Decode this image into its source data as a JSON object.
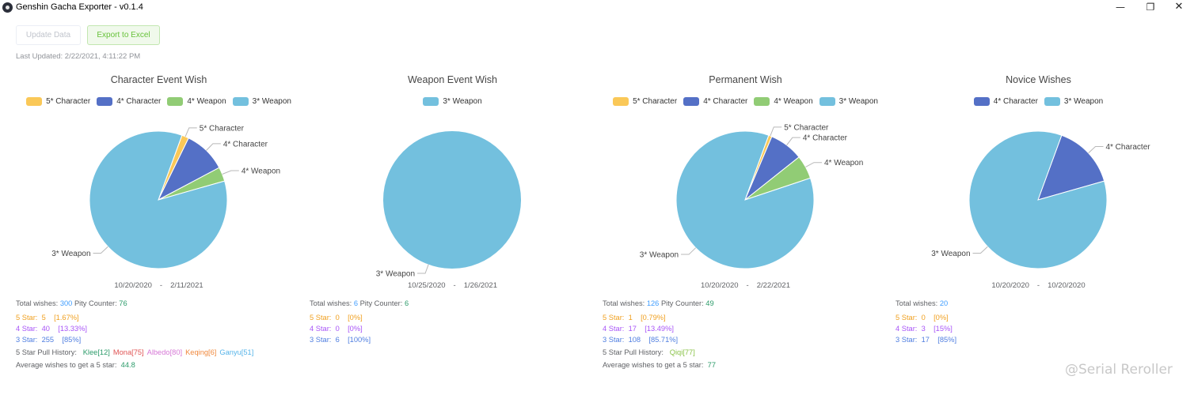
{
  "window": {
    "title": "Genshin Gacha Exporter - v0.1.4",
    "minimize": "—",
    "maximize": "❐",
    "close": "✕"
  },
  "toolbar": {
    "update_label": "Update Data",
    "export_label": "Export to Excel"
  },
  "last_updated": "Last Updated:  2/22/2021, 4:11:22 PM",
  "colors": {
    "five_char": "#fac858",
    "four_char": "#5470c6",
    "four_weapon": "#91cc75",
    "three_weapon": "#73c0de"
  },
  "panels": [
    {
      "title": "Character Event Wish",
      "legend": [
        "5* Character",
        "4* Character",
        "4* Weapon",
        "3* Weapon"
      ],
      "date_from": "10/20/2020",
      "date_sep": "-",
      "date_to": "2/11/2021",
      "total_label": "Total wishes:",
      "total": "300",
      "pity_label": "Pity Counter:",
      "pity": "76",
      "five_label": "5 Star:",
      "five_count": "5",
      "five_pct": "[1.67%]",
      "four_label": "4 Star:",
      "four_count": "40",
      "four_pct": "[13.33%]",
      "three_label": "3 Star:",
      "three_count": "255",
      "three_pct": "[85%]",
      "history_label": "5 Star Pull History:",
      "history": [
        {
          "text": "Klee[12]",
          "color": "#2c9b6a"
        },
        {
          "text": "Mona[75]",
          "color": "#e05555"
        },
        {
          "text": "Albedo[80]",
          "color": "#d678d6"
        },
        {
          "text": "Keqing[6]",
          "color": "#f0883c"
        },
        {
          "text": "Ganyu[51]",
          "color": "#56b4e9"
        }
      ],
      "avg_label": "Average wishes to get a 5 star:",
      "avg": "44.8"
    },
    {
      "title": "Weapon Event Wish",
      "legend": [
        "3* Weapon"
      ],
      "date_from": "10/25/2020",
      "date_sep": "-",
      "date_to": "1/26/2021",
      "total_label": "Total wishes:",
      "total": "6",
      "pity_label": "Pity Counter:",
      "pity": "6",
      "five_label": "5 Star:",
      "five_count": "0",
      "five_pct": "[0%]",
      "four_label": "4 Star:",
      "four_count": "0",
      "four_pct": "[0%]",
      "three_label": "3 Star:",
      "three_count": "6",
      "three_pct": "[100%]"
    },
    {
      "title": "Permanent Wish",
      "legend": [
        "5* Character",
        "4* Character",
        "4* Weapon",
        "3* Weapon"
      ],
      "date_from": "10/20/2020",
      "date_sep": "-",
      "date_to": "2/22/2021",
      "total_label": "Total wishes:",
      "total": "126",
      "pity_label": "Pity Counter:",
      "pity": "49",
      "five_label": "5 Star:",
      "five_count": "1",
      "five_pct": "[0.79%]",
      "four_label": "4 Star:",
      "four_count": "17",
      "four_pct": "[13.49%]",
      "three_label": "3 Star:",
      "three_count": "108",
      "three_pct": "[85.71%]",
      "history_label": "5 Star Pull History:",
      "history": [
        {
          "text": "Qiqi[77]",
          "color": "#8bc34a"
        }
      ],
      "avg_label": "Average wishes to get a 5 star:",
      "avg": "77"
    },
    {
      "title": "Novice Wishes",
      "legend": [
        "4* Character",
        "3* Weapon"
      ],
      "date_from": "10/20/2020",
      "date_sep": "-",
      "date_to": "10/20/2020",
      "total_label": "Total wishes:",
      "total": "20",
      "five_label": "5 Star:",
      "five_count": "0",
      "five_pct": "[0%]",
      "four_label": "4 Star:",
      "four_count": "3",
      "four_pct": "[15%]",
      "three_label": "3 Star:",
      "three_count": "17",
      "three_pct": "[85%]"
    }
  ],
  "chart_data": [
    {
      "type": "pie",
      "title": "Character Event Wish",
      "categories": [
        "5* Character",
        "4* Character",
        "4* Weapon",
        "3* Weapon"
      ],
      "values": [
        5,
        30,
        10,
        255
      ],
      "legend": "top"
    },
    {
      "type": "pie",
      "title": "Weapon Event Wish",
      "categories": [
        "3* Weapon"
      ],
      "values": [
        6
      ],
      "legend": "top"
    },
    {
      "type": "pie",
      "title": "Permanent Wish",
      "categories": [
        "5* Character",
        "4* Character",
        "4* Weapon",
        "3* Weapon"
      ],
      "values": [
        1,
        10,
        7,
        108
      ],
      "legend": "top"
    },
    {
      "type": "pie",
      "title": "Novice Wishes",
      "categories": [
        "4* Character",
        "3* Weapon"
      ],
      "values": [
        3,
        17
      ],
      "legend": "top"
    }
  ],
  "watermark": "@Serial Reroller"
}
